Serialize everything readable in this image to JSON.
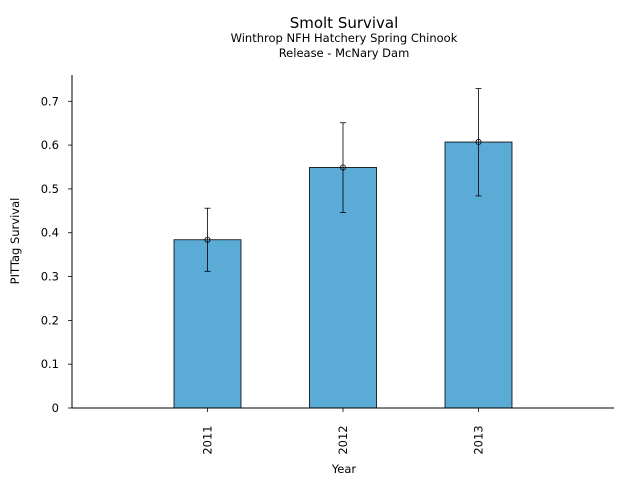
{
  "chart_data": {
    "type": "bar",
    "title": "Smolt Survival",
    "subtitle": [
      "Winthrop NFH Hatchery Spring Chinook",
      "Release - McNary Dam"
    ],
    "xlabel": "Year",
    "ylabel": "PITTag Survival",
    "categories": [
      "2011",
      "2012",
      "2013"
    ],
    "values": [
      0.384,
      0.549,
      0.607
    ],
    "error_low": [
      0.312,
      0.446,
      0.484
    ],
    "error_high": [
      0.456,
      0.651,
      0.729
    ],
    "ylim": [
      0,
      0.76
    ],
    "yticks": [
      0,
      0.1,
      0.2,
      0.3,
      0.4,
      0.5,
      0.6,
      0.7
    ],
    "ytick_labels": [
      "0",
      "0.1",
      "0.2",
      "0.3",
      "0.4",
      "0.5",
      "0.6",
      "0.7"
    ],
    "bar_color": "#5aabd6",
    "grid": false,
    "legend": "none"
  }
}
